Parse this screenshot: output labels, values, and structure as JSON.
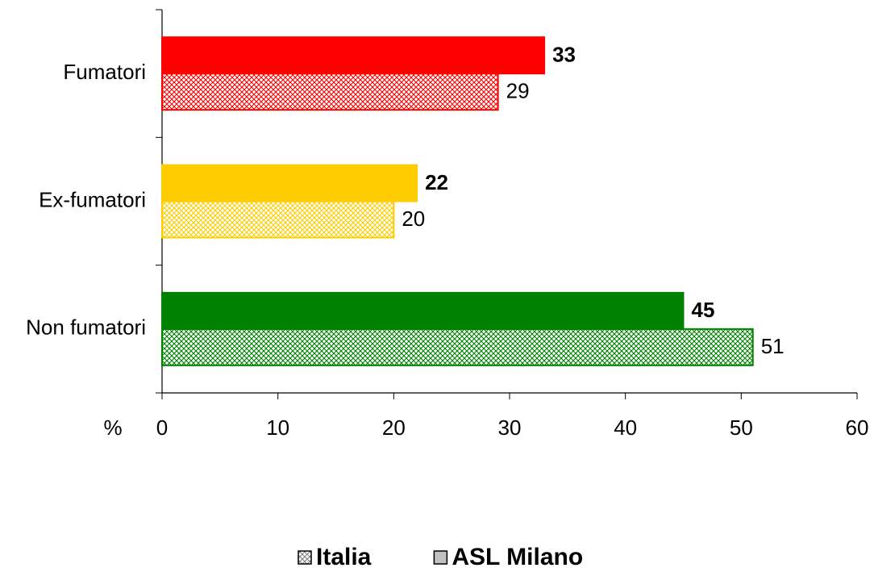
{
  "chart_data": {
    "type": "bar",
    "orientation": "horizontal",
    "categories": [
      "Fumatori",
      "Ex-fumatori",
      "Non fumatori"
    ],
    "category_colors": [
      "#ff0000",
      "#ffcc00",
      "#008000"
    ],
    "series": [
      {
        "name": "Italia",
        "style": "hatched",
        "values": [
          29,
          20,
          51
        ]
      },
      {
        "name": "ASL Milano",
        "style": "solid",
        "values": [
          33,
          22,
          45
        ]
      }
    ],
    "legend_color": "#c0c0c0",
    "x_label": "%",
    "xlim": [
      0,
      60
    ],
    "xticks": [
      0,
      10,
      20,
      30,
      40,
      50,
      60
    ]
  }
}
